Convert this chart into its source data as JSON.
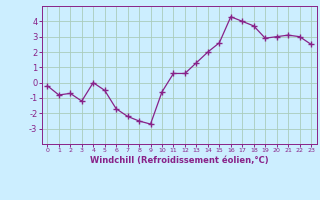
{
  "x": [
    0,
    1,
    2,
    3,
    4,
    5,
    6,
    7,
    8,
    9,
    10,
    11,
    12,
    13,
    14,
    15,
    16,
    17,
    18,
    19,
    20,
    21,
    22,
    23
  ],
  "y": [
    -0.2,
    -0.8,
    -0.7,
    -1.2,
    0.0,
    -0.5,
    -1.7,
    -2.2,
    -2.5,
    -2.7,
    -0.6,
    0.6,
    0.6,
    1.3,
    2.0,
    2.6,
    4.3,
    4.0,
    3.7,
    2.9,
    3.0,
    3.1,
    3.0,
    2.5
  ],
  "line_color": "#882288",
  "marker": "+",
  "marker_size": 4,
  "bg_color": "#cceeff",
  "grid_color": "#aaccbb",
  "tick_color": "#882288",
  "label_color": "#882288",
  "xlabel": "Windchill (Refroidissement éolien,°C)",
  "ylim": [
    -4,
    5
  ],
  "xlim": [
    -0.5,
    23.5
  ],
  "yticks": [
    -3,
    -2,
    -1,
    0,
    1,
    2,
    3,
    4
  ],
  "xticks": [
    0,
    1,
    2,
    3,
    4,
    5,
    6,
    7,
    8,
    9,
    10,
    11,
    12,
    13,
    14,
    15,
    16,
    17,
    18,
    19,
    20,
    21,
    22,
    23
  ]
}
